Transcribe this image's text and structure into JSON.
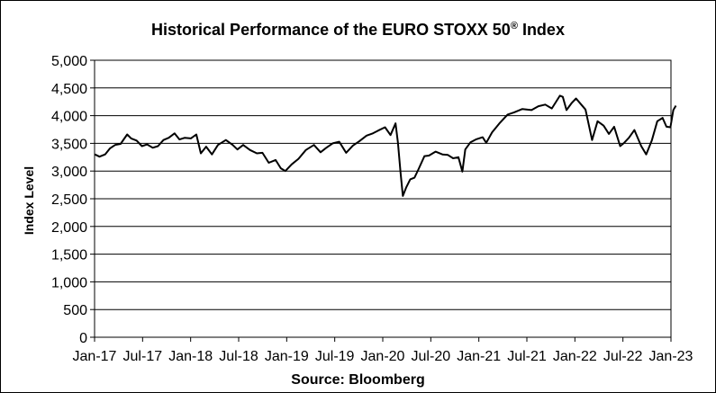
{
  "chart_data": {
    "type": "line",
    "title": "Historical Performance of the EURO STOXX 50",
    "title_mark": "®",
    "title_suffix": " Index",
    "ylabel": "Index Level",
    "source": "Source: Bloomberg",
    "ylim": [
      0,
      5000
    ],
    "yticks": [
      "0",
      "500",
      "1,000",
      "1,500",
      "2,000",
      "2,500",
      "3,000",
      "3,500",
      "4,000",
      "4,500",
      "5,000"
    ],
    "xticks": [
      "Jan-17",
      "Jul-17",
      "Jan-18",
      "Jul-18",
      "Jan-19",
      "Jul-19",
      "Jan-20",
      "Jul-20",
      "Jan-21",
      "Jul-21",
      "Jan-22",
      "Jul-22",
      "Jan-23"
    ],
    "grid": "horizontal",
    "series": [
      {
        "color": "#000000",
        "x": [
          "2017-01-02",
          "2017-01-20",
          "2017-02-10",
          "2017-03-01",
          "2017-03-20",
          "2017-04-10",
          "2017-05-05",
          "2017-05-20",
          "2017-06-10",
          "2017-06-30",
          "2017-07-20",
          "2017-08-10",
          "2017-08-30",
          "2017-09-20",
          "2017-10-10",
          "2017-11-01",
          "2017-11-20",
          "2017-12-10",
          "2018-01-02",
          "2018-01-23",
          "2018-02-09",
          "2018-03-01",
          "2018-03-23",
          "2018-04-15",
          "2018-05-15",
          "2018-06-10",
          "2018-06-28",
          "2018-07-20",
          "2018-08-15",
          "2018-09-10",
          "2018-10-01",
          "2018-10-25",
          "2018-11-20",
          "2018-12-10",
          "2018-12-27",
          "2019-01-20",
          "2019-02-15",
          "2019-03-15",
          "2019-04-15",
          "2019-05-10",
          "2019-06-01",
          "2019-06-25",
          "2019-07-20",
          "2019-08-15",
          "2019-09-10",
          "2019-10-05",
          "2019-11-01",
          "2019-11-25",
          "2019-12-15",
          "2020-01-10",
          "2020-01-31",
          "2020-02-19",
          "2020-02-28",
          "2020-03-09",
          "2020-03-18",
          "2020-03-30",
          "2020-04-15",
          "2020-05-01",
          "2020-05-15",
          "2020-06-08",
          "2020-06-25",
          "2020-07-20",
          "2020-08-15",
          "2020-09-05",
          "2020-09-25",
          "2020-10-15",
          "2020-10-30",
          "2020-11-10",
          "2020-11-30",
          "2020-12-20",
          "2021-01-15",
          "2021-01-29",
          "2021-02-20",
          "2021-03-20",
          "2021-04-20",
          "2021-05-15",
          "2021-06-15",
          "2021-07-20",
          "2021-08-15",
          "2021-09-10",
          "2021-10-05",
          "2021-11-05",
          "2021-11-16",
          "2021-11-30",
          "2021-12-20",
          "2022-01-05",
          "2022-01-25",
          "2022-02-10",
          "2022-03-07",
          "2022-03-28",
          "2022-04-20",
          "2022-05-10",
          "2022-05-30",
          "2022-06-22",
          "2022-07-05",
          "2022-07-25",
          "2022-08-15",
          "2022-09-10",
          "2022-09-29",
          "2022-10-20",
          "2022-11-10",
          "2022-11-30",
          "2022-12-15",
          "2022-12-30",
          "2023-01-10",
          "2023-01-20"
        ],
        "y": [
          3300,
          3260,
          3300,
          3410,
          3470,
          3490,
          3660,
          3590,
          3550,
          3450,
          3480,
          3420,
          3450,
          3560,
          3600,
          3680,
          3570,
          3600,
          3590,
          3660,
          3320,
          3440,
          3300,
          3470,
          3560,
          3470,
          3390,
          3470,
          3380,
          3320,
          3330,
          3150,
          3200,
          3050,
          3000,
          3120,
          3220,
          3380,
          3470,
          3340,
          3420,
          3500,
          3530,
          3330,
          3460,
          3540,
          3640,
          3680,
          3730,
          3790,
          3650,
          3860,
          3520,
          2980,
          2550,
          2700,
          2850,
          2880,
          3020,
          3270,
          3280,
          3350,
          3300,
          3290,
          3230,
          3250,
          2990,
          3390,
          3520,
          3570,
          3610,
          3510,
          3700,
          3860,
          4020,
          4060,
          4120,
          4100,
          4170,
          4200,
          4130,
          4360,
          4340,
          4100,
          4230,
          4310,
          4200,
          4110,
          3560,
          3900,
          3820,
          3670,
          3800,
          3450,
          3500,
          3600,
          3740,
          3450,
          3300,
          3550,
          3900,
          3960,
          3800,
          3790,
          4100,
          4180
        ]
      }
    ]
  }
}
